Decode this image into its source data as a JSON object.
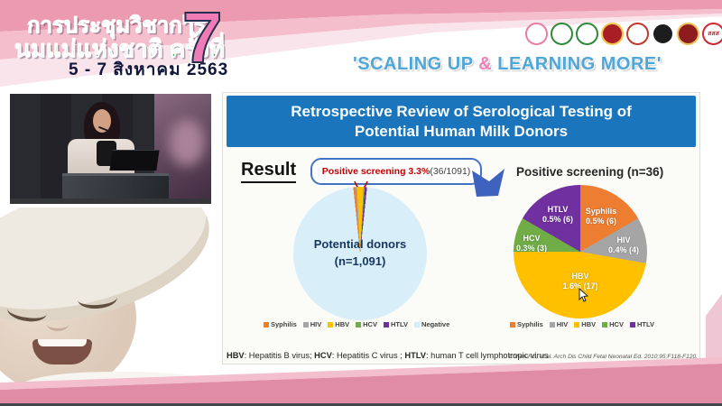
{
  "header": {
    "event_line1": "การประชุมวิชาการ",
    "event_line2": "นมแม่แห่งชาติ ครั้งที่",
    "event_number": "7",
    "event_dates": "5 - 7 สิงหาคม 2563",
    "tagline_open": "'SCALING UP ",
    "tagline_amp": "&",
    "tagline_close": " LEARNING MORE'",
    "tagline_color": "#4FA6D8",
    "logos": [
      {
        "name": "breastfeeding-foundation-logo",
        "bg": "#ffffff",
        "fg": "#E87EA0"
      },
      {
        "name": "green-medical-seal-logo",
        "bg": "#ffffff",
        "fg": "#2E8B3A"
      },
      {
        "name": "green-health-seal-logo",
        "bg": "#ffffff",
        "fg": "#2E8B3A"
      },
      {
        "name": "red-gold-crest-logo",
        "bg": "#A81E24",
        "fg": "#F2C94C"
      },
      {
        "name": "royal-crest-logo",
        "bg": "#ffffff",
        "fg": "#C0392B"
      },
      {
        "name": "black-university-seal-logo",
        "bg": "#1D1D1F",
        "fg": "#FFFFFF"
      },
      {
        "name": "dark-red-emblem-logo",
        "bg": "#8E1B1E",
        "fg": "#E8C15A"
      },
      {
        "name": "thai-health-sss-logo",
        "bg": "#ffffff",
        "fg": "#D22630",
        "text": "สสส"
      }
    ]
  },
  "slide": {
    "title_line1": "Retrospective Review of Serological Testing of",
    "title_line2": "Potential Human Milk Donors",
    "title_bg": "#1B75BC",
    "result_label": "Result",
    "callout_highlight": "Positive screening 3.3%",
    "callout_detail": " (36/1091)",
    "left_pie_center1": "Potential donors",
    "left_pie_center2": "(n=1,091)",
    "right_pie_heading": "Positive screening (n=36)",
    "right_labels": [
      {
        "name": "Syphilis",
        "pct": "0.5% (6)"
      },
      {
        "name": "HIV",
        "pct": "0.4% (4)"
      },
      {
        "name": "HBV",
        "pct": "1.6% (17)"
      },
      {
        "name": "HCV",
        "pct": "0.3% (3)"
      },
      {
        "name": "HTLV",
        "pct": "0.5% (6)"
      }
    ],
    "footnote": [
      {
        "abbr": "HBV",
        "text": ": Hepatitis B virus; "
      },
      {
        "abbr": "HCV",
        "text": ": Hepatitis C virus ; "
      },
      {
        "abbr": "HTLV",
        "text": ": human T cell lymphotropic virus"
      }
    ],
    "citation": "Cohen RS, et al. Arch Dis Child Fetal Neonatal Ed. 2010;95:F118-F120."
  },
  "chart_data": [
    {
      "type": "pie",
      "title": "Potential donors (n=1,091)",
      "labels": [
        "Syphilis",
        "HIV",
        "HBV",
        "HCV",
        "HTLV",
        "Negative"
      ],
      "values": [
        6,
        4,
        17,
        3,
        6,
        1055
      ],
      "colors": [
        "#ED7D31",
        "#A5A5A5",
        "#FFC000",
        "#70AD47",
        "#7030A0",
        "#D8EEF8"
      ],
      "start_angle_deg": -5.9,
      "annotation": "Positive screening 3.3% (36/1091)",
      "legend_position": "bottom"
    },
    {
      "type": "pie",
      "title": "Positive screening (n=36)",
      "labels": [
        "Syphilis",
        "HIV",
        "HBV",
        "HCV",
        "HTLV"
      ],
      "values": [
        6,
        4,
        17,
        3,
        6
      ],
      "slice_labels": [
        "Syphilis 0.5% (6)",
        "HIV 0.4% (4)",
        "HBV 1.6% (17)",
        "HCV 0.3% (3)",
        "HTLV 0.5% (6)"
      ],
      "colors": [
        "#ED7D31",
        "#A5A5A5",
        "#FFC000",
        "#70AD47",
        "#7030A0"
      ],
      "start_angle_deg": 0,
      "legend_position": "bottom"
    }
  ]
}
